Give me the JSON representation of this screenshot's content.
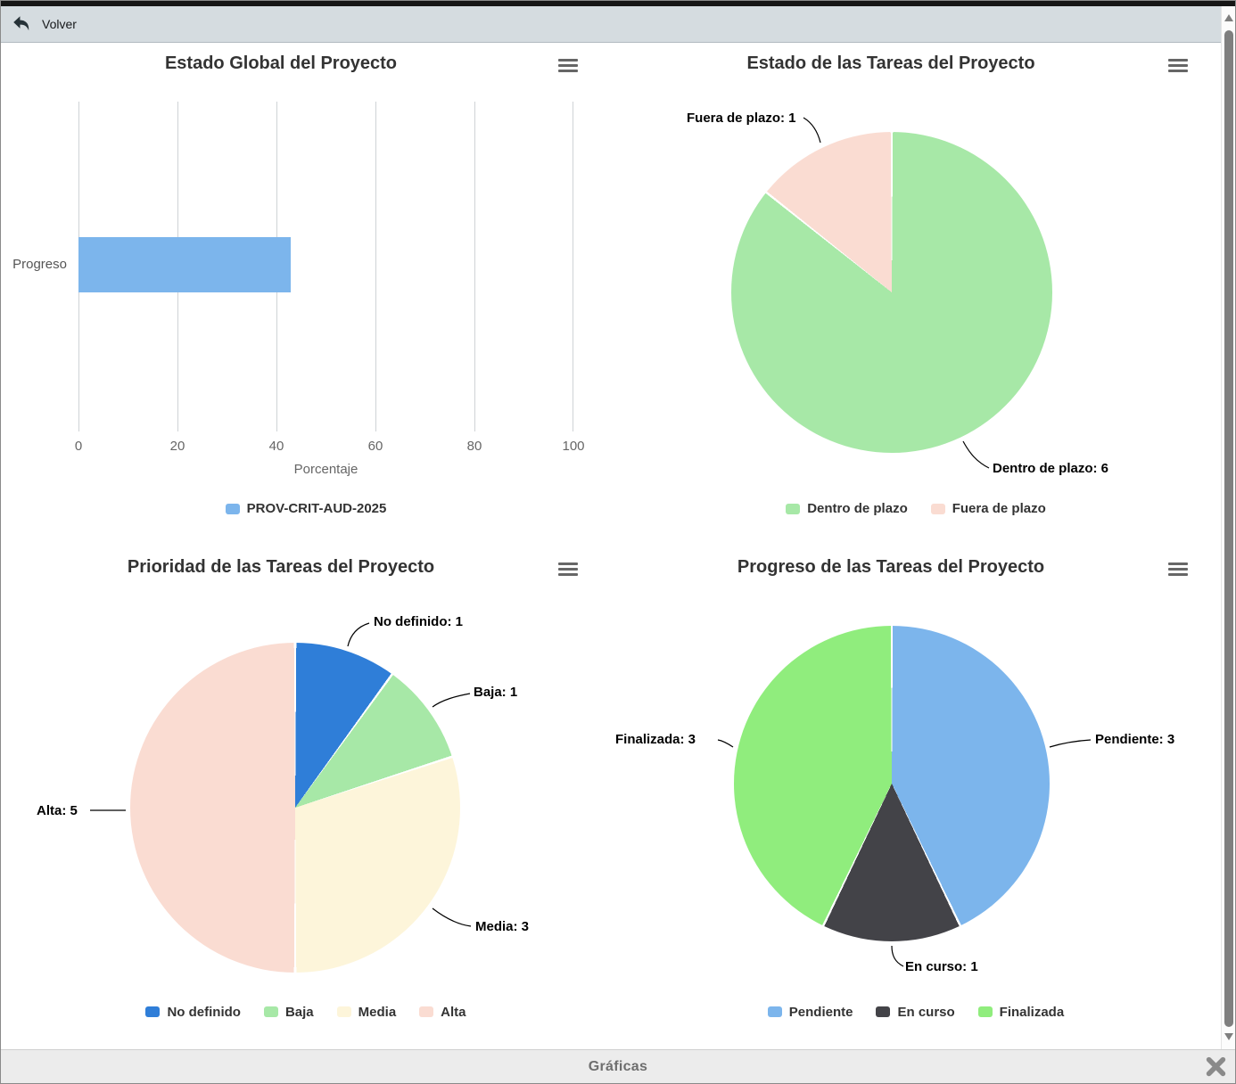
{
  "topbar": {
    "back_label": "Volver"
  },
  "bottombar": {
    "title": "Gráficas"
  },
  "icons": {
    "back": "undo-arrow-icon",
    "chart_menu": "hamburger-icon",
    "close": "close-x-icon",
    "scroll_up": "up-arrow-icon",
    "scroll_down": "down-arrow-icon"
  },
  "chart_data": [
    {
      "type": "bar",
      "orientation": "horizontal",
      "title": "Estado Global del Proyecto",
      "categories": [
        "Progreso"
      ],
      "series": [
        {
          "name": "PROV-CRIT-AUD-2025",
          "values": [
            42.9
          ],
          "color": "#7cb5ec"
        }
      ],
      "xlabel": "Porcentaje",
      "xlim": [
        0,
        100
      ],
      "xticks": [
        "0",
        "20",
        "40",
        "60",
        "80",
        "100"
      ],
      "grid": true,
      "legend_position": "bottom"
    },
    {
      "type": "pie",
      "title": "Estado de las Tareas del Proyecto",
      "slices": [
        {
          "name": "Dentro de plazo",
          "value": 6,
          "color": "#a7e8a7",
          "label": "Dentro de plazo: 6"
        },
        {
          "name": "Fuera de plazo",
          "value": 1,
          "color": "#fadcd2",
          "label": "Fuera de plazo: 1"
        }
      ],
      "legend_position": "bottom"
    },
    {
      "type": "pie",
      "title": "Prioridad de las Tareas del Proyecto",
      "slices": [
        {
          "name": "No definido",
          "value": 1,
          "color": "#2f7ed8",
          "label": "No definido: 1"
        },
        {
          "name": "Baja",
          "value": 1,
          "color": "#a7e8a7",
          "label": "Baja: 1"
        },
        {
          "name": "Media",
          "value": 3,
          "color": "#fdf5da",
          "label": "Media: 3"
        },
        {
          "name": "Alta",
          "value": 5,
          "color": "#fadcd2",
          "label": "Alta: 5"
        }
      ],
      "legend_position": "bottom"
    },
    {
      "type": "pie",
      "title": "Progreso de las Tareas del Proyecto",
      "slices": [
        {
          "name": "Pendiente",
          "value": 3,
          "color": "#7cb5ec",
          "label": "Pendiente: 3"
        },
        {
          "name": "En curso",
          "value": 1,
          "color": "#434348",
          "label": "En curso: 1"
        },
        {
          "name": "Finalizada",
          "value": 3,
          "color": "#90ed7d",
          "label": "Finalizada: 3"
        }
      ],
      "legend_position": "bottom"
    }
  ]
}
